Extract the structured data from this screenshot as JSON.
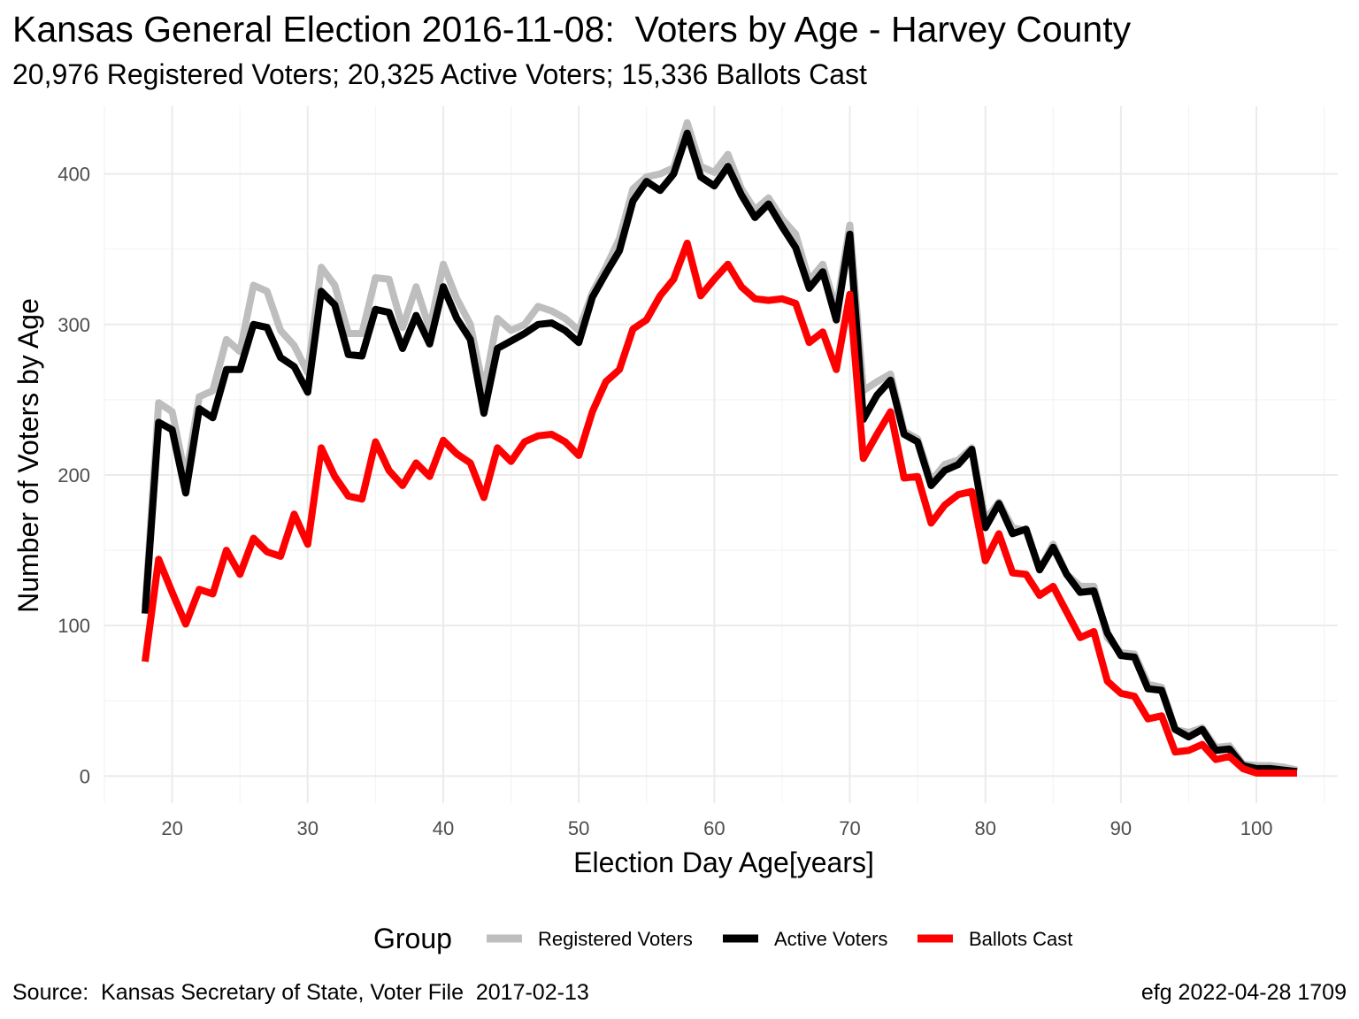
{
  "chart_data": {
    "type": "line",
    "title": "Kansas General Election 2016-11-08:  Voters by Age - Harvey County",
    "subtitle": "20,976 Registered Voters; 20,325 Active Voters; 15,336 Ballots Cast",
    "xlabel": "Election Day Age[years]",
    "ylabel": "Number of Voters by Age",
    "xlim": [
      15,
      106
    ],
    "ylim": [
      -18,
      445
    ],
    "x_ticks": [
      20,
      30,
      40,
      50,
      60,
      70,
      80,
      90,
      100
    ],
    "y_ticks": [
      0,
      100,
      200,
      300,
      400
    ],
    "grid": true,
    "legend": {
      "title": "Group",
      "position": "bottom"
    },
    "x": [
      18,
      19,
      20,
      21,
      22,
      23,
      24,
      25,
      26,
      27,
      28,
      29,
      30,
      31,
      32,
      33,
      34,
      35,
      36,
      37,
      38,
      39,
      40,
      41,
      42,
      43,
      44,
      45,
      46,
      47,
      48,
      49,
      50,
      51,
      52,
      53,
      54,
      55,
      56,
      57,
      58,
      59,
      60,
      61,
      62,
      63,
      64,
      65,
      66,
      67,
      68,
      69,
      70,
      71,
      72,
      73,
      74,
      75,
      76,
      77,
      78,
      79,
      80,
      81,
      82,
      83,
      84,
      85,
      86,
      87,
      88,
      89,
      90,
      91,
      92,
      93,
      94,
      95,
      96,
      97,
      98,
      99,
      100,
      101,
      102,
      103
    ],
    "series": [
      {
        "name": "Registered Voters",
        "color": "#bebebe",
        "values": [
          112,
          248,
          242,
          198,
          252,
          256,
          290,
          282,
          326,
          322,
          296,
          286,
          268,
          338,
          326,
          294,
          294,
          331,
          330,
          298,
          325,
          297,
          340,
          317,
          300,
          256,
          304,
          296,
          300,
          312,
          309,
          304,
          296,
          321,
          338,
          357,
          390,
          398,
          400,
          404,
          434,
          405,
          401,
          413,
          390,
          376,
          384,
          370,
          360,
          329,
          340,
          310,
          366,
          256,
          262,
          267,
          229,
          224,
          196,
          207,
          210,
          218,
          170,
          182,
          165,
          163,
          137,
          154,
          134,
          126,
          126,
          92,
          82,
          81,
          61,
          59,
          31,
          29,
          32,
          19,
          20,
          8,
          7,
          7,
          6,
          4
        ]
      },
      {
        "name": "Active Voters",
        "color": "#000000",
        "values": [
          108,
          235,
          230,
          188,
          244,
          238,
          270,
          270,
          300,
          298,
          278,
          272,
          255,
          322,
          313,
          280,
          279,
          310,
          308,
          284,
          306,
          287,
          325,
          304,
          290,
          241,
          284,
          289,
          294,
          300,
          301,
          296,
          288,
          318,
          334,
          349,
          382,
          395,
          389,
          400,
          427,
          398,
          392,
          405,
          386,
          371,
          380,
          365,
          351,
          324,
          335,
          303,
          360,
          237,
          253,
          263,
          227,
          222,
          193,
          203,
          207,
          217,
          165,
          181,
          161,
          164,
          137,
          152,
          134,
          122,
          123,
          95,
          80,
          79,
          58,
          57,
          31,
          26,
          31,
          17,
          18,
          7,
          5,
          5,
          4,
          3
        ]
      },
      {
        "name": "Ballots Cast",
        "color": "#ff0000",
        "values": [
          76,
          144,
          122,
          101,
          124,
          121,
          150,
          134,
          158,
          149,
          146,
          174,
          154,
          218,
          199,
          186,
          184,
          222,
          203,
          193,
          208,
          199,
          223,
          214,
          208,
          185,
          218,
          209,
          222,
          226,
          227,
          222,
          213,
          242,
          262,
          270,
          297,
          303,
          319,
          330,
          354,
          319,
          330,
          340,
          325,
          317,
          316,
          317,
          314,
          288,
          295,
          270,
          320,
          211,
          227,
          242,
          198,
          199,
          168,
          180,
          187,
          189,
          143,
          161,
          135,
          134,
          120,
          126,
          109,
          92,
          96,
          63,
          55,
          53,
          38,
          40,
          16,
          17,
          21,
          11,
          13,
          5,
          2,
          2,
          2,
          2
        ]
      }
    ],
    "caption_left": "Source:  Kansas Secretary of State, Voter File  2017-02-13",
    "caption_right": "efg 2022-04-28 1709"
  }
}
